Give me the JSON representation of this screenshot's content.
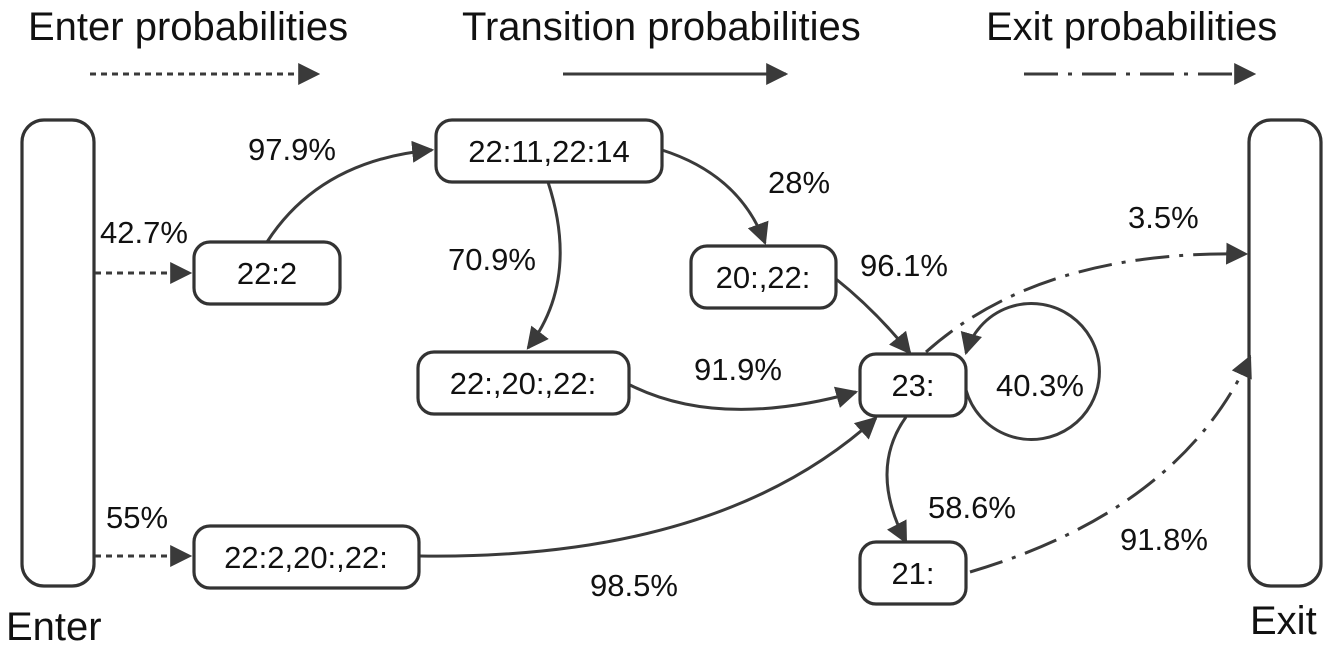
{
  "legend": {
    "enter": "Enter probabilities",
    "transition": "Transition probabilities",
    "exit": "Exit probabilities"
  },
  "ends": {
    "enter": "Enter",
    "exit": "Exit"
  },
  "nodes": {
    "n22_2": "22:2",
    "n22_11_22_14": "22:11,22:14",
    "n20_22": "20:,22:",
    "n22_20_22": "22:,20:,22:",
    "n23": "23:",
    "n22_2_20_22": "22:2,20:,22:",
    "n21": "21:"
  },
  "edge_labels": {
    "enter_22_2": "42.7%",
    "enter_22_2_20_22": "55%",
    "e22_2_to_22_11": "97.9%",
    "e22_11_to_22_20_22": "70.9%",
    "e22_11_to_20_22": "28%",
    "e20_22_to_23": "96.1%",
    "e22_20_22_to_23": "91.9%",
    "e23_self": "40.3%",
    "e23_to_21": "58.6%",
    "e22_2_20_22_to_23": "98.5%",
    "exit_23": "3.5%",
    "exit_21": "91.8%"
  }
}
